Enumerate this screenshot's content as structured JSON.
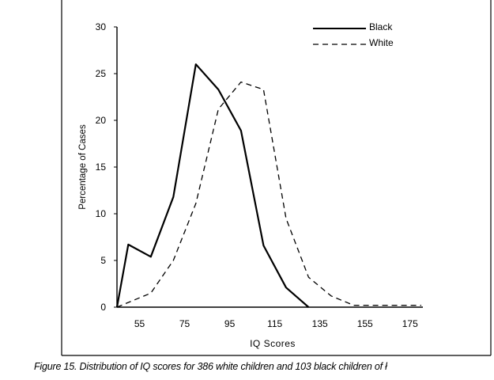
{
  "chart_data": {
    "type": "line",
    "xlabel": "IQ Scores",
    "ylabel": "Percentage of Cases",
    "xlim": [
      45,
      180
    ],
    "ylim": [
      0,
      30
    ],
    "xticks": [
      55,
      75,
      95,
      115,
      135,
      155,
      175
    ],
    "yticks": [
      0,
      5,
      10,
      15,
      20,
      25,
      30
    ],
    "legend_position": "top-right",
    "grid": false,
    "series": [
      {
        "name": "Black",
        "style": "solid",
        "x": [
          45,
          50,
          60,
          70,
          80,
          90,
          100,
          110,
          120,
          130
        ],
        "y": [
          0,
          6.7,
          5.4,
          11.8,
          26.0,
          23.3,
          18.9,
          6.6,
          2.1,
          0
        ]
      },
      {
        "name": "White",
        "style": "dashed",
        "x": [
          45,
          55,
          60,
          70,
          80,
          90,
          100,
          110,
          120,
          130,
          140,
          150,
          160,
          170,
          180
        ],
        "y": [
          0,
          1.0,
          1.5,
          5.0,
          11.1,
          21.2,
          24.1,
          23.3,
          9.5,
          3.2,
          1.2,
          0.2,
          0.2,
          0.2,
          0.2
        ]
      }
    ]
  },
  "caption": "Figure 15. Distribution of IQ scores for 386 white children and 103 black children of ł"
}
